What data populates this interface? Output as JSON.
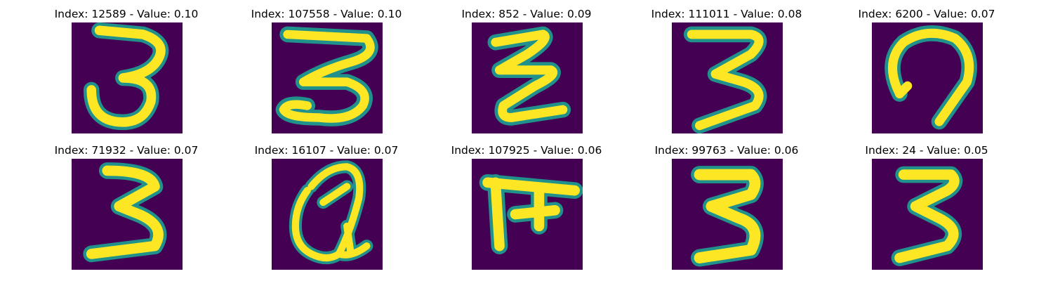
{
  "figure": {
    "panels": [
      {
        "title": "Index: 12589 - Value: 0.10",
        "image_index": 12589,
        "value": 0.1,
        "glyph": "3"
      },
      {
        "title": "Index: 107558 - Value: 0.10",
        "image_index": 107558,
        "value": 0.1,
        "glyph": "3"
      },
      {
        "title": "Index: 852 - Value: 0.09",
        "image_index": 852,
        "value": 0.09,
        "glyph": "z"
      },
      {
        "title": "Index: 111011 - Value: 0.08",
        "image_index": 111011,
        "value": 0.08,
        "glyph": "3"
      },
      {
        "title": "Index: 6200 - Value: 0.07",
        "image_index": 6200,
        "value": 0.07,
        "glyph": "hook"
      },
      {
        "title": "Index: 71932 - Value: 0.07",
        "image_index": 71932,
        "value": 0.07,
        "glyph": "3"
      },
      {
        "title": "Index: 16107 - Value: 0.07",
        "image_index": 16107,
        "value": 0.07,
        "glyph": "a"
      },
      {
        "title": "Index: 107925 - Value: 0.06",
        "image_index": 107925,
        "value": 0.06,
        "glyph": "F"
      },
      {
        "title": "Index: 99763 - Value: 0.06",
        "image_index": 99763,
        "value": 0.06,
        "glyph": "3"
      },
      {
        "title": "Index: 24 - Value: 0.05",
        "image_index": 24,
        "value": 0.05,
        "glyph": "3"
      }
    ],
    "colors": {
      "background": "#440154",
      "stroke_edge": "#21918c",
      "stroke_core": "#fde725",
      "stroke_mid": "#5ec962"
    }
  }
}
